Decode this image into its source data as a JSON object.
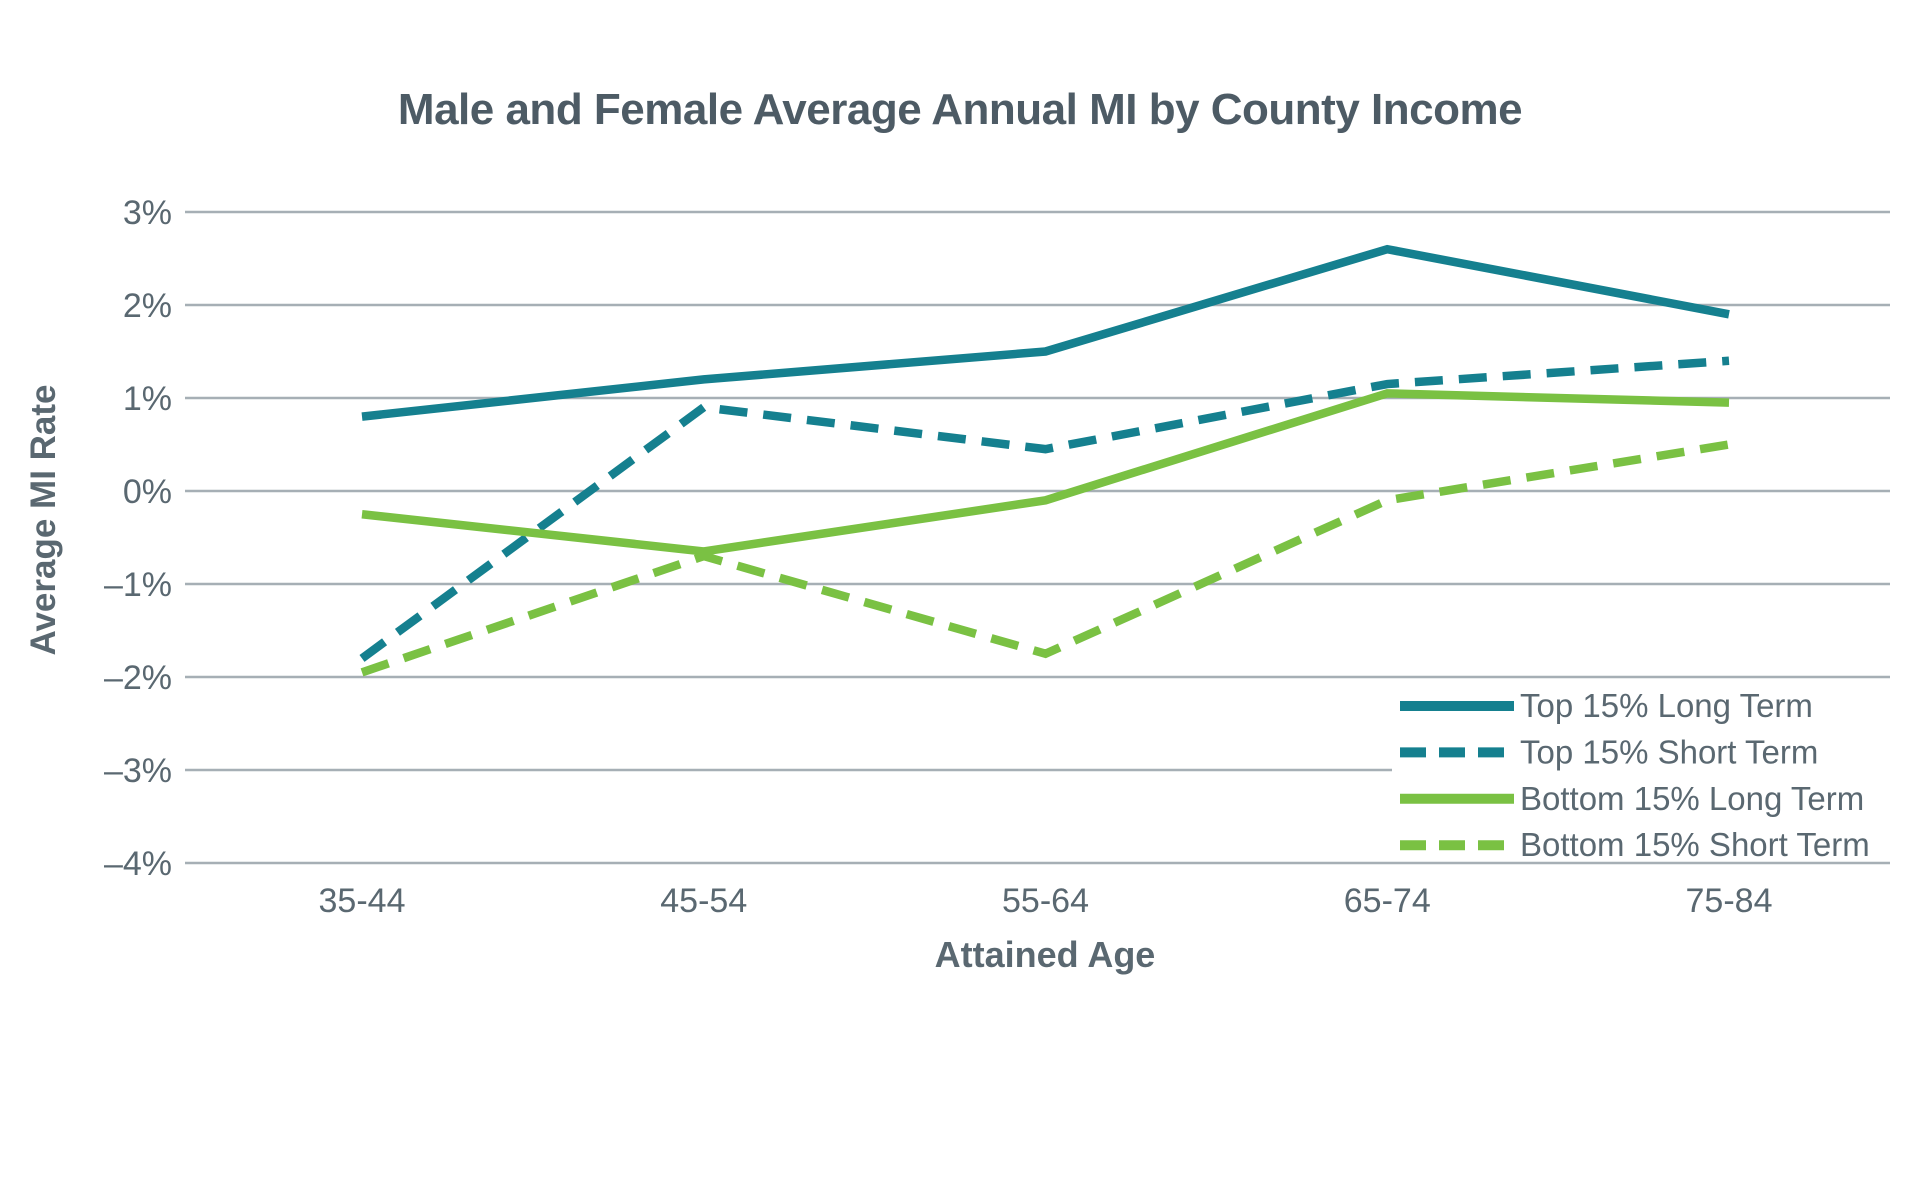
{
  "chart_data": {
    "type": "line",
    "title": "Male and Female Average Annual MI by County Income",
    "xlabel": "Attained Age",
    "ylabel": "Average MI Rate",
    "categories": [
      "35-44",
      "45-54",
      "55-64",
      "65-74",
      "75-84"
    ],
    "y_ticks": [
      {
        "label": "3%",
        "value": 3
      },
      {
        "label": "2%",
        "value": 2
      },
      {
        "label": "1%",
        "value": 1
      },
      {
        "label": "0%",
        "value": 0
      },
      {
        "label": "–1%",
        "value": -1
      },
      {
        "label": "–2%",
        "value": -2
      },
      {
        "label": "–3%",
        "value": -3
      },
      {
        "label": "–4%",
        "value": -4
      }
    ],
    "ylim": [
      -4,
      3
    ],
    "grid": "horizontal",
    "legend_position": "inside-bottom-right",
    "series": [
      {
        "name": "Top 15% Long Term",
        "color": "#15808F",
        "style": "solid",
        "values": [
          0.8,
          1.2,
          1.5,
          2.6,
          1.9
        ]
      },
      {
        "name": "Top 15% Short Term",
        "color": "#15808F",
        "style": "dashed",
        "values": [
          -1.8,
          0.9,
          0.45,
          1.15,
          1.4
        ]
      },
      {
        "name": "Bottom 15% Long Term",
        "color": "#7AC143",
        "style": "solid",
        "values": [
          -0.25,
          -0.65,
          -0.1,
          1.05,
          0.95
        ]
      },
      {
        "name": "Bottom 15% Short Term",
        "color": "#7AC143",
        "style": "dashed",
        "values": [
          -1.95,
          -0.7,
          -1.75,
          -0.1,
          0.5
        ]
      }
    ],
    "colors": {
      "teal": "#15808F",
      "green": "#7AC143",
      "grid": "#A6AFB5",
      "text": "#5A6871",
      "title": "#4D5B65",
      "legend_background": "#FFFFFF"
    }
  }
}
